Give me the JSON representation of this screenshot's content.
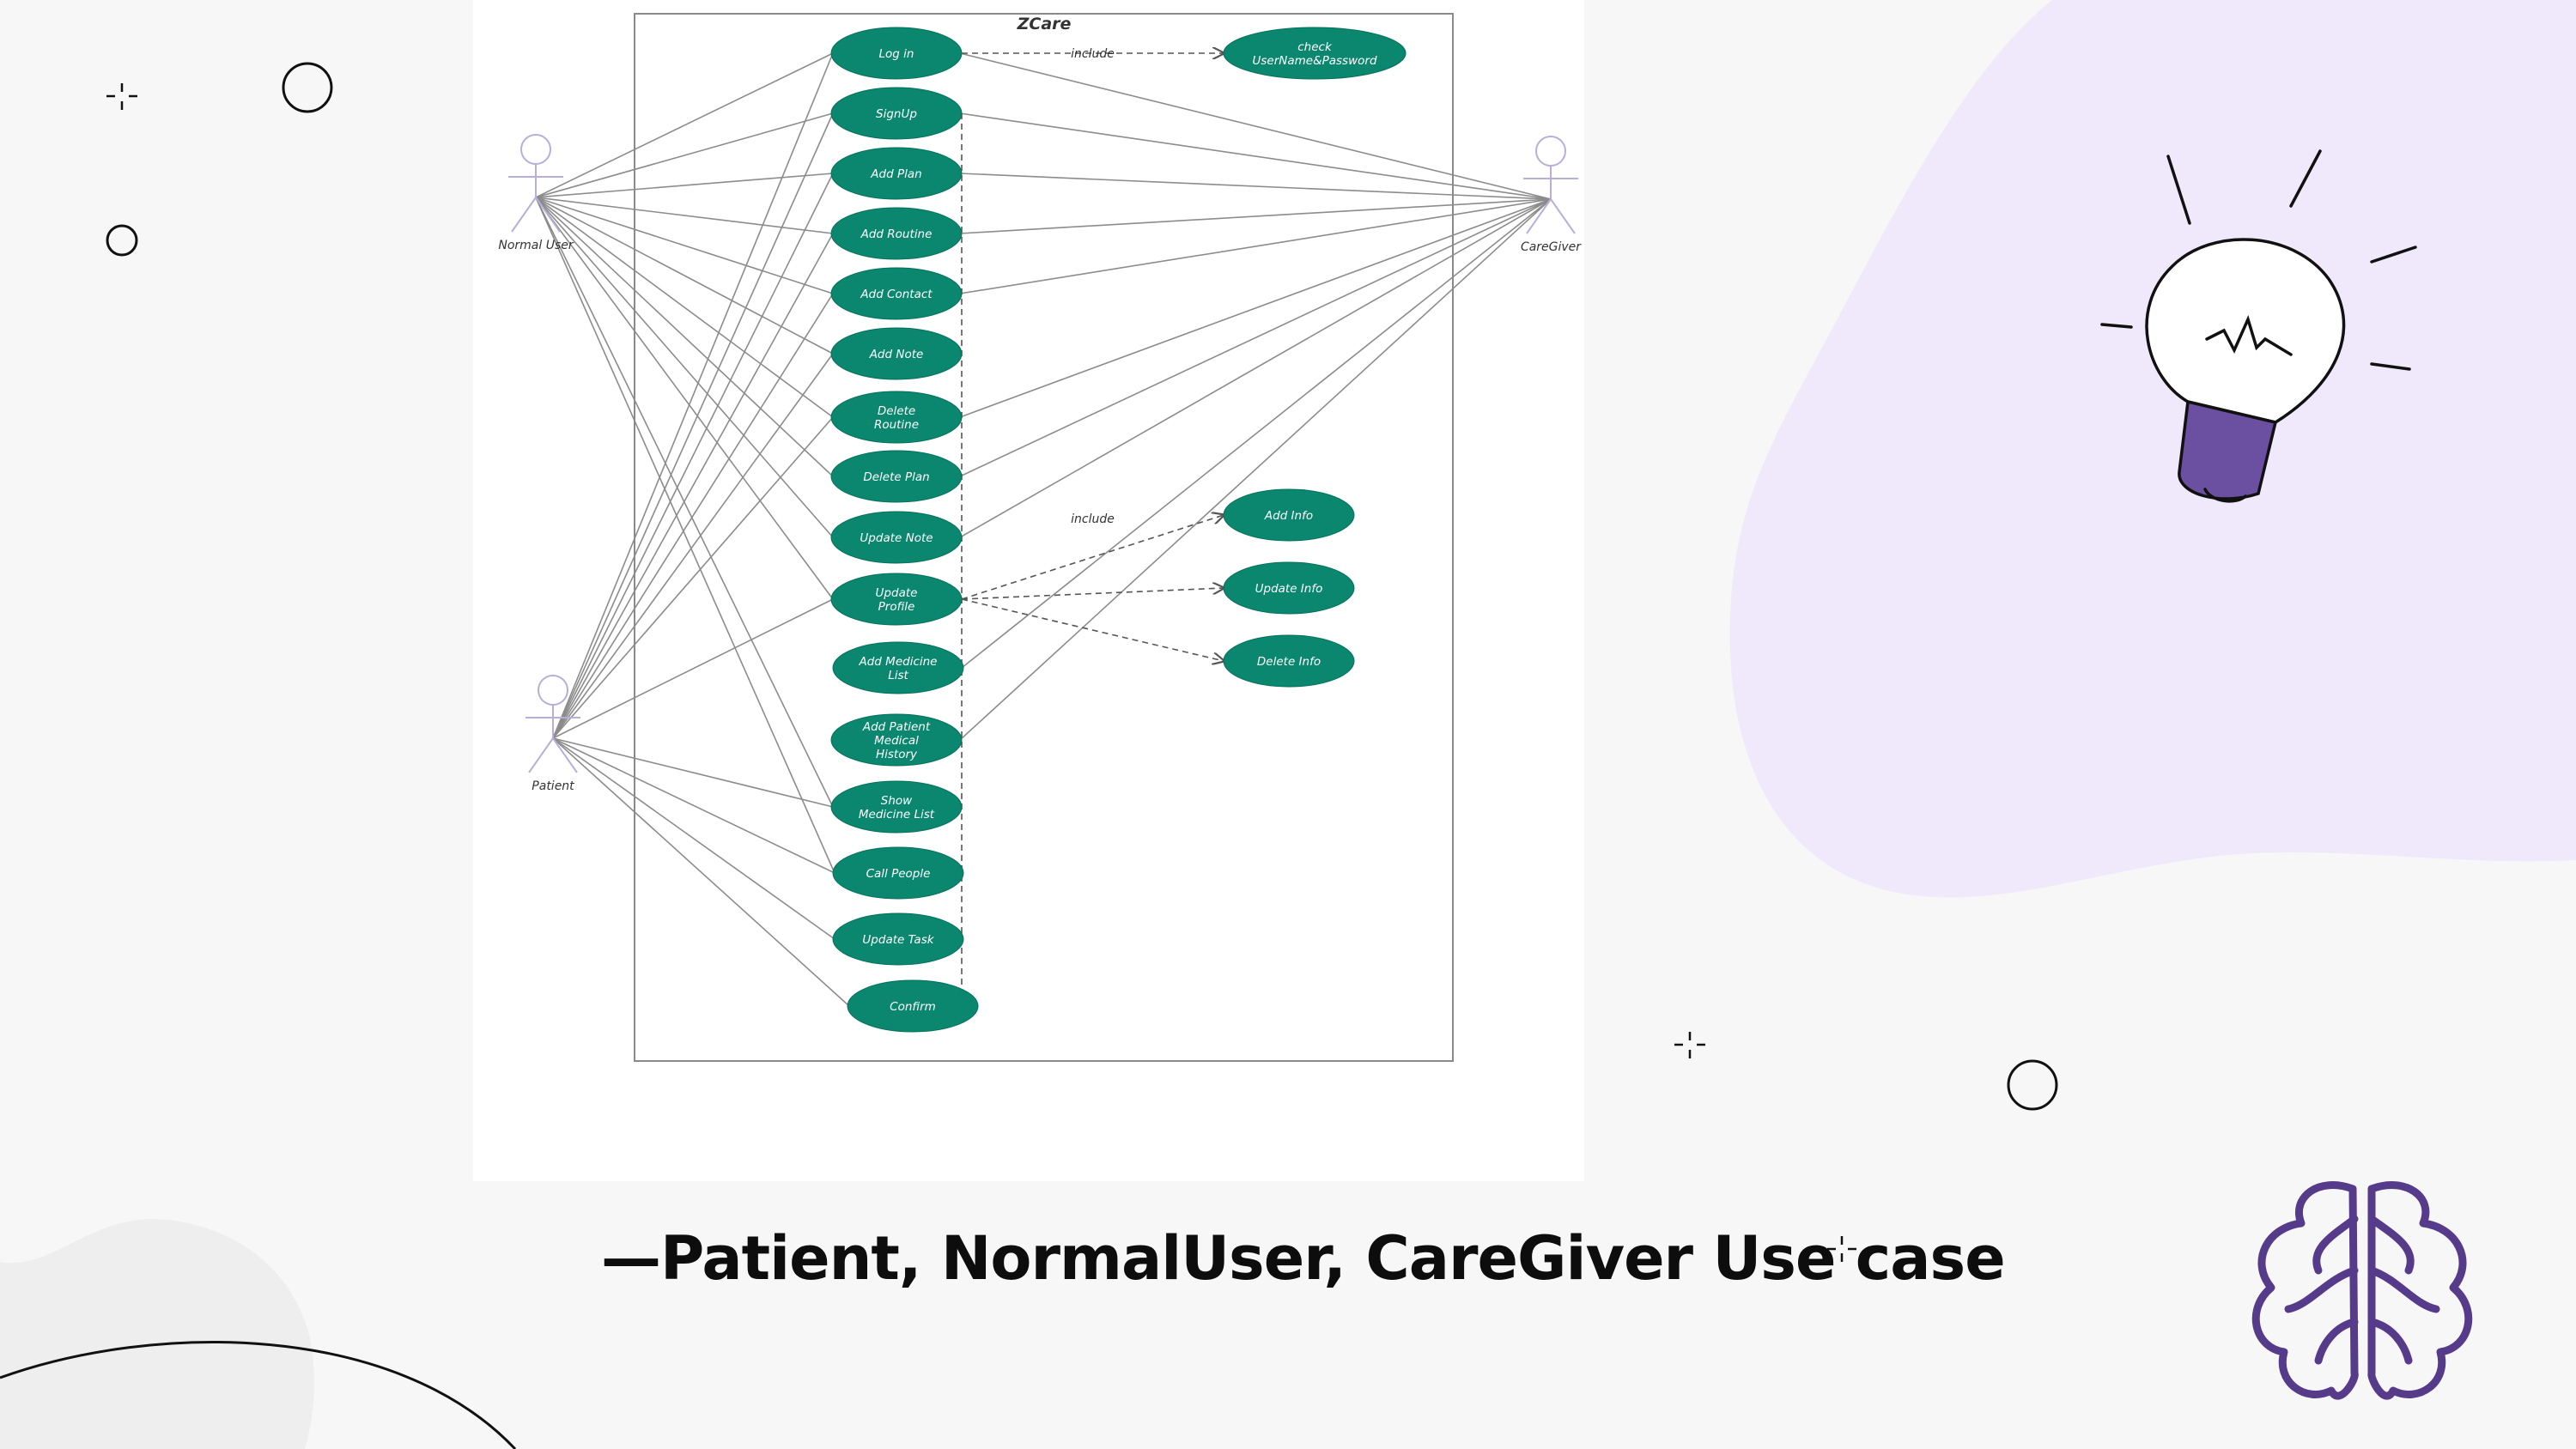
{
  "slide": {
    "caption": "—Patient, NormalUser, CareGiver Use case"
  },
  "diagram": {
    "system_title": "ZCare",
    "actors": [
      {
        "id": "normal",
        "label": "Normal User"
      },
      {
        "id": "caregiver",
        "label": "CareGiver"
      },
      {
        "id": "patient",
        "label": "Patient"
      }
    ],
    "use_cases": [
      {
        "id": "login",
        "lines": [
          "Log in"
        ]
      },
      {
        "id": "signup",
        "lines": [
          "SignUp"
        ]
      },
      {
        "id": "addplan",
        "lines": [
          "Add Plan"
        ]
      },
      {
        "id": "addroutine",
        "lines": [
          "Add Routine"
        ]
      },
      {
        "id": "addcontact",
        "lines": [
          "Add Contact"
        ]
      },
      {
        "id": "addnote",
        "lines": [
          "Add Note"
        ]
      },
      {
        "id": "delroutine",
        "lines": [
          "Delete",
          "Routine"
        ]
      },
      {
        "id": "delplan",
        "lines": [
          "Delete Plan"
        ]
      },
      {
        "id": "updnote",
        "lines": [
          "Update Note"
        ]
      },
      {
        "id": "updprofile",
        "lines": [
          "Update",
          "Profile"
        ]
      },
      {
        "id": "addmed",
        "lines": [
          "Add Medicine",
          "List"
        ]
      },
      {
        "id": "addhist",
        "lines": [
          "Add Patient",
          "Medical",
          "History"
        ]
      },
      {
        "id": "showmed",
        "lines": [
          "Show",
          "Medicine List"
        ]
      },
      {
        "id": "call",
        "lines": [
          "Call People"
        ]
      },
      {
        "id": "updtask",
        "lines": [
          "Update Task"
        ]
      },
      {
        "id": "confirm",
        "lines": [
          "Confirm"
        ]
      },
      {
        "id": "check",
        "lines": [
          "check",
          "UserName&Password"
        ]
      },
      {
        "id": "addinfo",
        "lines": [
          "Add Info"
        ]
      },
      {
        "id": "updinfo",
        "lines": [
          "Update Info"
        ]
      },
      {
        "id": "delinfo",
        "lines": [
          "Delete Info"
        ]
      }
    ],
    "include_label": "include",
    "associations": {
      "normal": [
        "login",
        "signup",
        "addplan",
        "addroutine",
        "addcontact",
        "addnote",
        "delroutine",
        "delplan",
        "updnote",
        "updprofile",
        "showmed",
        "call"
      ],
      "caregiver": [
        "login",
        "signup",
        "addplan",
        "addroutine",
        "addcontact",
        "delroutine",
        "delplan",
        "updnote",
        "addmed",
        "addhist"
      ],
      "patient": [
        "login",
        "signup",
        "addplan",
        "addroutine",
        "addcontact",
        "addnote",
        "delroutine",
        "updprofile",
        "showmed",
        "call",
        "updtask",
        "confirm"
      ]
    },
    "includes": [
      {
        "from": "login",
        "to": "check",
        "labeled": true
      },
      {
        "from": "signup",
        "to": "confirm",
        "labeled": false
      },
      {
        "from": "updprofile",
        "to": "addinfo",
        "labeled": true
      },
      {
        "from": "updprofile",
        "to": "updinfo",
        "labeled": false
      },
      {
        "from": "updprofile",
        "to": "delinfo",
        "labeled": false
      }
    ]
  },
  "colors": {
    "use_case_fill": "#0a876e",
    "accent_purple": "#6b4fa0",
    "blob_lavender": "#efe9fb"
  }
}
